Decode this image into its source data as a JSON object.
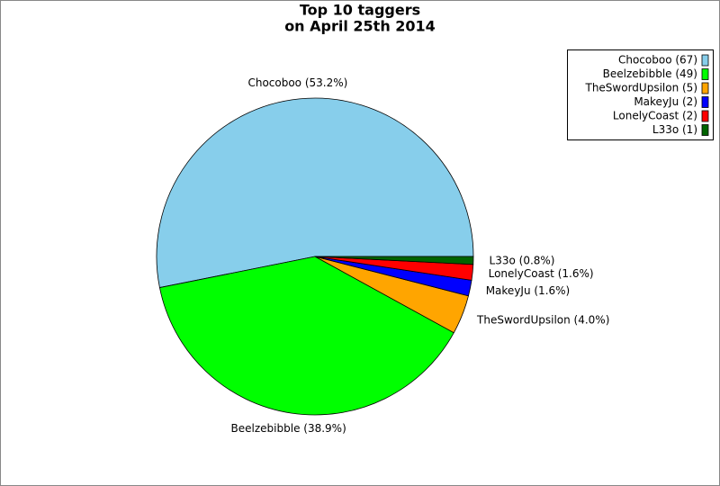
{
  "chart_data": {
    "type": "pie",
    "title": "Top 10 taggers",
    "subtitle": "on April 25th 2014",
    "categories": [
      "Chocoboo",
      "Beelzebibble",
      "TheSwordUpsilon",
      "MakeyJu",
      "LonelyCoast",
      "L33o"
    ],
    "values": [
      53.2,
      38.9,
      4.0,
      1.6,
      1.6,
      0.8
    ],
    "value_labels": [
      "Chocoboo (53.2%)",
      "Beelzebibble (38.9%)",
      "TheSwordUpsilon (4.0%)",
      "MakeyJu (1.6%)",
      "LonelyCoast (1.6%)",
      "L33o (0.8%)"
    ],
    "legend_labels": [
      "Chocoboo (67)",
      "Beelzebibble (49)",
      "TheSwordUpsilon (5)",
      "MakeyJu (2)",
      "LonelyCoast (2)",
      "L33o (1)"
    ],
    "colors": [
      "#87ceeb",
      "#00ff00",
      "#ffa500",
      "#0000ff",
      "#ff0000",
      "#006400"
    ],
    "legend": "upper right"
  }
}
